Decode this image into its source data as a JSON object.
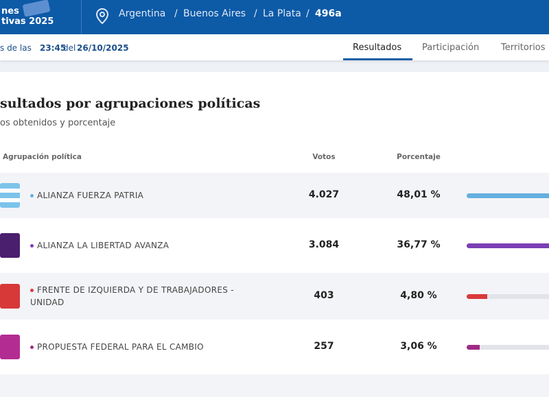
{
  "header": {
    "logo_lines": [
      "nes",
      "tivas 2025"
    ],
    "breadcrumb": [
      "Argentina",
      "/",
      "Buenos Aires",
      "/",
      "La Plata",
      "/",
      "496a"
    ]
  },
  "update": {
    "prefix": "s de las",
    "time": "23:45",
    "mid": "del",
    "date": "26/10/2025"
  },
  "tabs": [
    "Resultados",
    "Participación",
    "Territorios"
  ],
  "section": {
    "title": "sultados por agrupaciones políticas",
    "subtitle": "os obtenidos y porcentaje"
  },
  "table": {
    "columns": [
      "Agrupación política",
      "Votos",
      "Porcentaje"
    ],
    "rows": [
      {
        "name": "ALIANZA FUERZA PATRIA",
        "votes": "4.027",
        "percentage": {
          "value": 48.01,
          "label": "48,01 %"
        },
        "color": "#64b0e0"
      },
      {
        "name": "ALIANZA LA LIBERTAD AVANZA",
        "votes": "3.084",
        "percentage": {
          "value": 36.77,
          "label": "36,77 %"
        },
        "color": "#7b3fb5"
      },
      {
        "name": "FRENTE DE IZQUIERDA Y DE TRABAJADORES - UNIDAD",
        "votes": "403",
        "percentage": {
          "value": 4.8,
          "label": "4,80 %"
        },
        "color": "#d93a3a"
      },
      {
        "name": "PROPUESTA FEDERAL PARA EL CAMBIO",
        "votes": "257",
        "percentage": {
          "value": 3.06,
          "label": "3,06 %"
        },
        "color": "#a02a84"
      }
    ]
  }
}
